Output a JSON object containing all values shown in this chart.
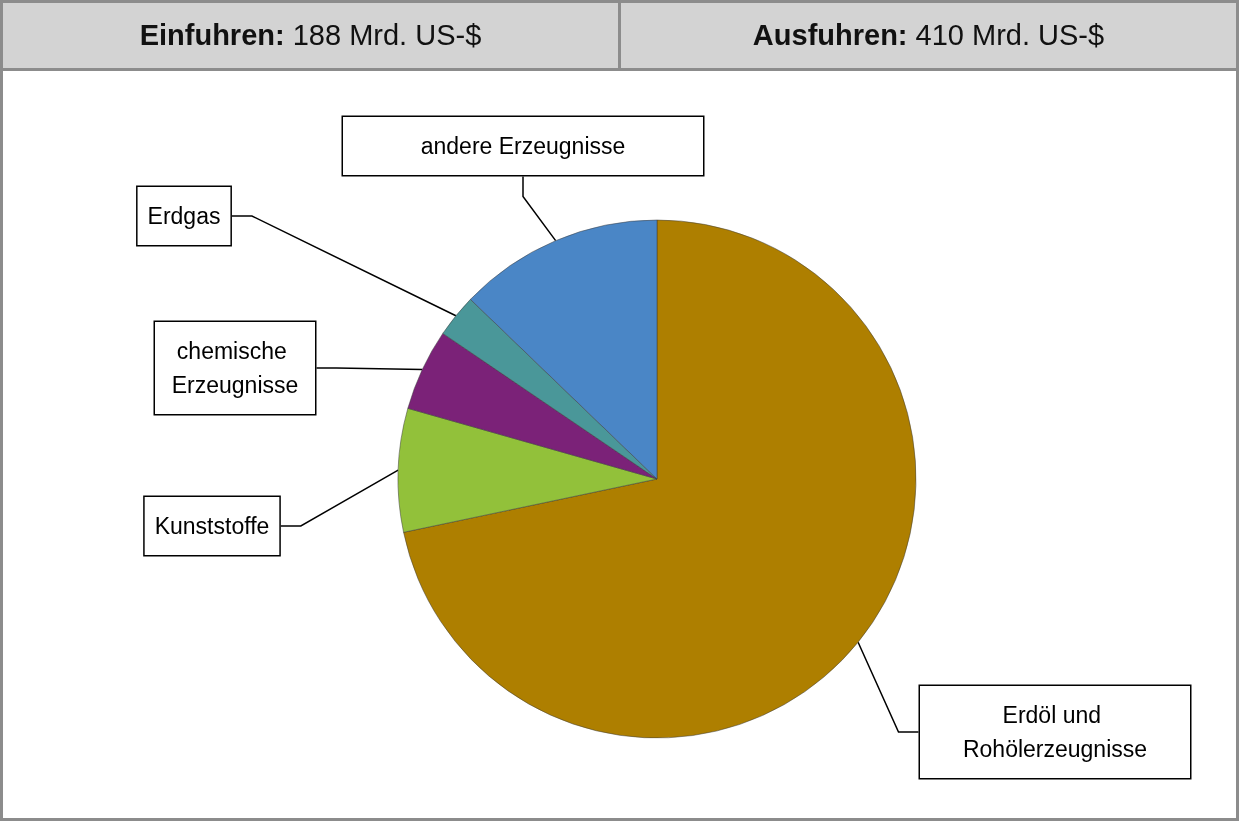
{
  "chart_data": {
    "type": "pie",
    "annotations": [
      "Einfuhren: 188 Mrd. US-$",
      "Ausfuhren: 410 Mrd. US-$"
    ],
    "categories": [
      "Erdöl und Rohölerzeugnisse",
      "Kunststoffe",
      "chemische Erzeugnisse",
      "Erdgas",
      "andere Erzeugnisse"
    ],
    "values": [
      71.7,
      7.7,
      5.1,
      2.7,
      12.8
    ],
    "colors": [
      "#ae7f00",
      "#92c13a",
      "#7b2278",
      "#4a9799",
      "#4a86c6"
    ],
    "legend": false
  }
}
